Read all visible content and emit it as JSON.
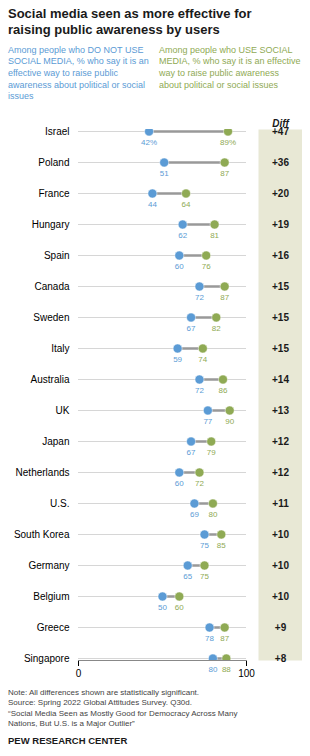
{
  "chart_data": {
    "type": "dumbbell",
    "title": "Social media seen as more effective for\nraising public awareness by users",
    "categories": [
      "Israel",
      "Poland",
      "France",
      "Hungary",
      "Spain",
      "Canada",
      "Sweden",
      "Italy",
      "Australia",
      "UK",
      "Japan",
      "Netherlands",
      "U.S.",
      "South Korea",
      "Germany",
      "Belgium",
      "Greece",
      "Singapore"
    ],
    "series": [
      {
        "name": "Among people who DO NOT USE SOCIAL MEDIA, % who say it is an effective way to raise public awareness about political or social issues",
        "color": "#5b9bd5",
        "values": [
          42,
          51,
          44,
          62,
          60,
          72,
          67,
          59,
          72,
          77,
          67,
          60,
          69,
          75,
          65,
          50,
          78,
          80
        ],
        "value_labels": [
          "42%",
          "51",
          "44",
          "62",
          "60",
          "72",
          "67",
          "59",
          "72",
          "77",
          "67",
          "60",
          "69",
          "75",
          "65",
          "50",
          "78",
          "80"
        ]
      },
      {
        "name": "Among people who USE SOCIAL MEDIA, % who say it is an effective way to raise public awareness about political or social issues",
        "color": "#8faa54",
        "values": [
          89,
          87,
          64,
          81,
          76,
          87,
          82,
          74,
          86,
          90,
          79,
          72,
          80,
          85,
          75,
          60,
          87,
          88
        ],
        "value_labels": [
          "89%",
          "87",
          "64",
          "81",
          "76",
          "87",
          "82",
          "74",
          "86",
          "90",
          "79",
          "72",
          "80",
          "85",
          "75",
          "60",
          "87",
          "88"
        ]
      }
    ],
    "diff": {
      "label": "Diff",
      "color": "#e8e8d5",
      "values": [
        47,
        36,
        20,
        19,
        16,
        15,
        15,
        15,
        14,
        13,
        12,
        12,
        11,
        10,
        10,
        10,
        9,
        8
      ],
      "value_labels": [
        "+47",
        "+36",
        "+20",
        "+19",
        "+16",
        "+15",
        "+15",
        "+15",
        "+14",
        "+13",
        "+12",
        "+12",
        "+11",
        "+10",
        "+10",
        "+10",
        "+9",
        "+8"
      ]
    },
    "xlim": [
      0,
      100
    ],
    "xticks": [
      0,
      100
    ],
    "grid": true,
    "data_labels": true,
    "note": "Note: All differences shown are statistically significant.\nSource: Spring 2022 Global Attitudes Survey. Q30d.\n“Social Media Seen as Mostly Good for Democracy Across Many\nNations, But U.S. is a Major Outlier”",
    "footer": "PEW RESEARCH CENTER"
  }
}
